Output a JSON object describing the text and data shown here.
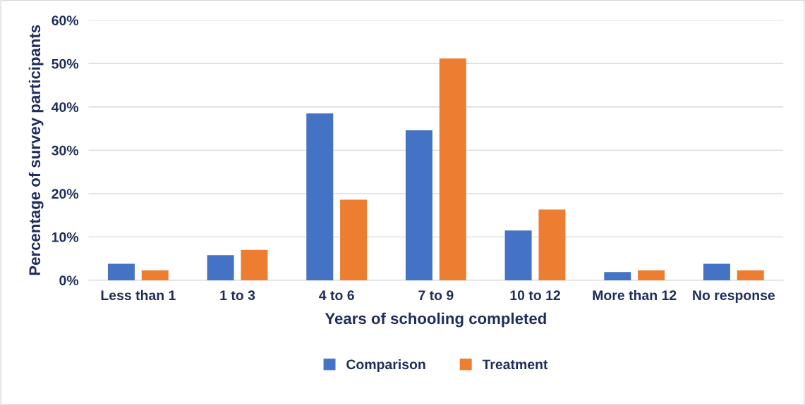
{
  "chart_data": {
    "type": "bar",
    "xlabel": "Years of schooling completed",
    "ylabel": "Percentage of survey participants",
    "categories": [
      "Less than 1",
      "1 to 3",
      "4 to 6",
      "7 to 9",
      "10 to 12",
      "More than 12",
      "No response"
    ],
    "series": [
      {
        "name": "Comparison",
        "color": "#4472c4",
        "values": [
          3.8,
          5.8,
          38.5,
          34.6,
          11.5,
          1.9,
          3.8
        ]
      },
      {
        "name": "Treatment",
        "color": "#ed7d31",
        "values": [
          2.3,
          7.0,
          18.6,
          51.2,
          16.3,
          2.3,
          2.3
        ]
      }
    ],
    "ylim": [
      0,
      60
    ],
    "yticks": [
      {
        "value": 0,
        "label": "0%"
      },
      {
        "value": 10,
        "label": "10%"
      },
      {
        "value": 20,
        "label": "20%"
      },
      {
        "value": 30,
        "label": "30%"
      },
      {
        "value": 40,
        "label": "40%"
      },
      {
        "value": 50,
        "label": "50%"
      },
      {
        "value": 60,
        "label": "60%"
      }
    ],
    "grid": "y",
    "legend": "bottom"
  }
}
